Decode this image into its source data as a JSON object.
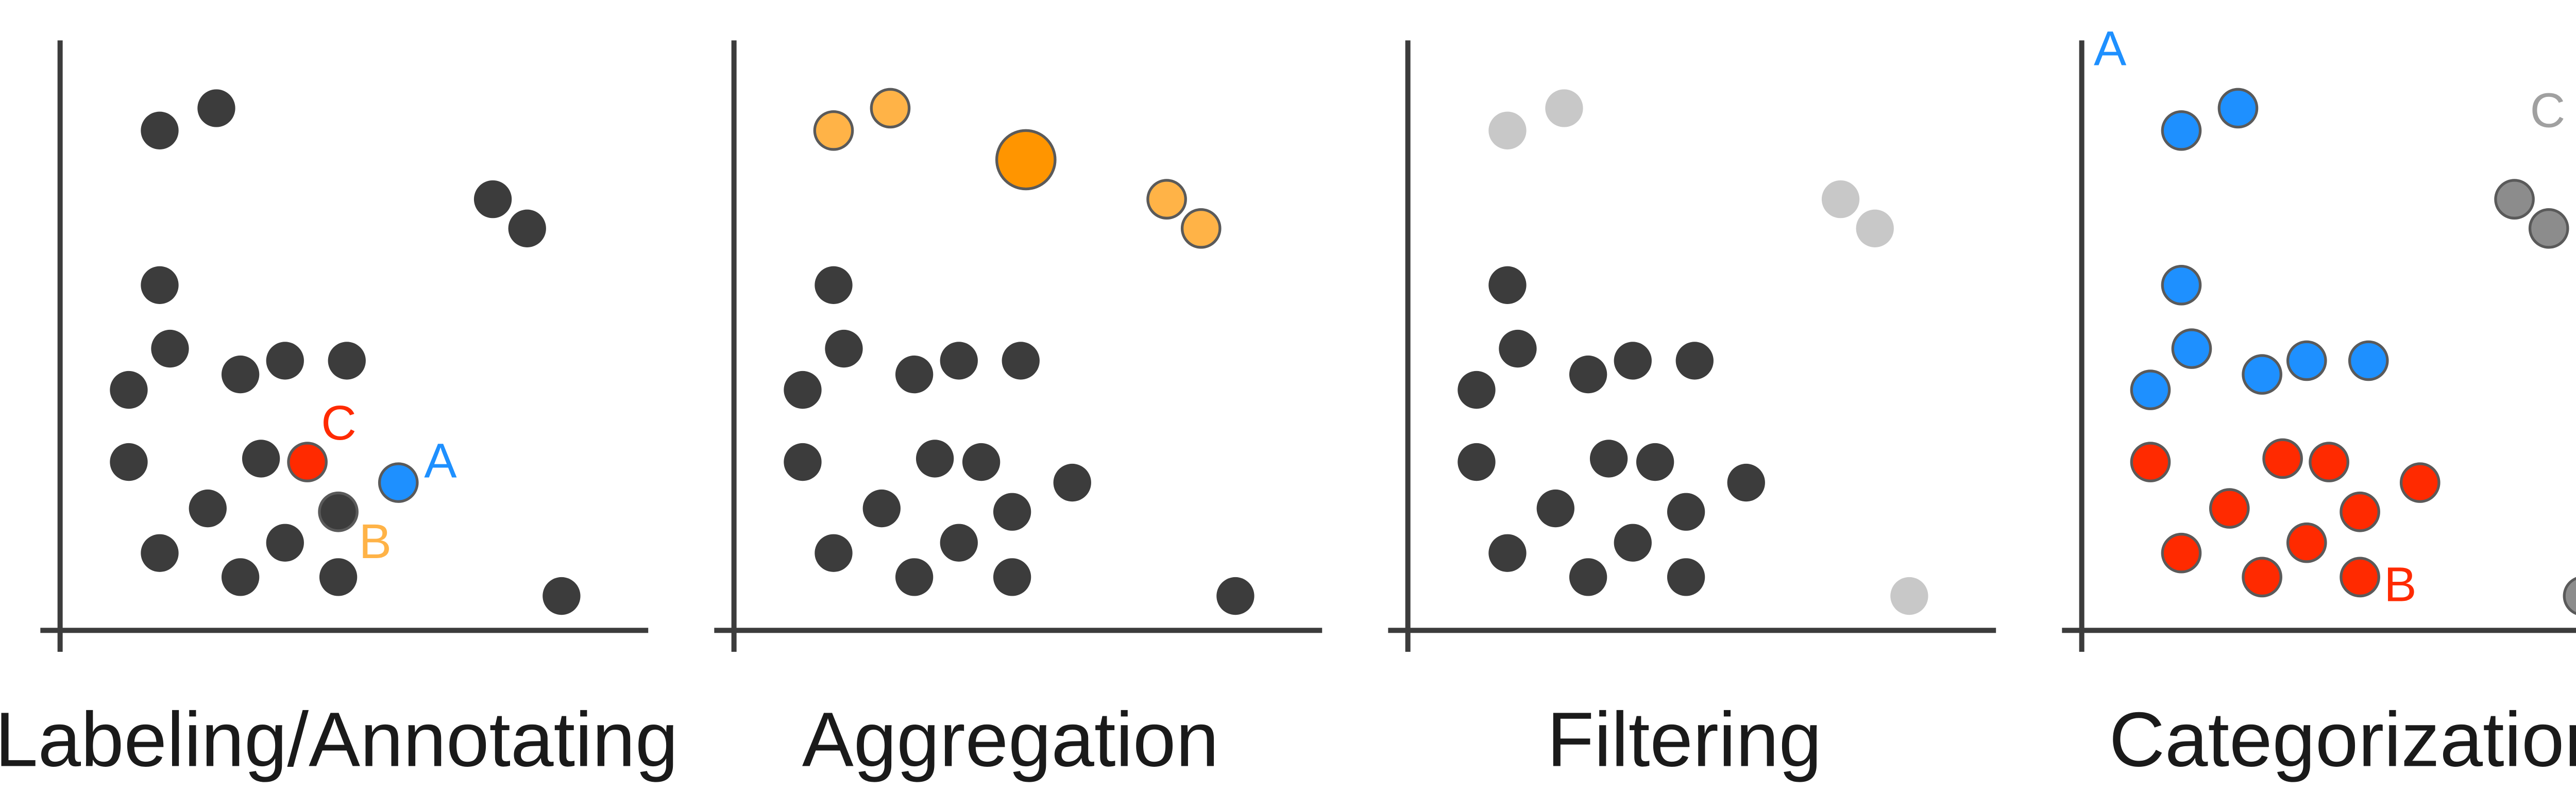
{
  "figure": {
    "panels": [
      {
        "title": "Labeling/Annotating",
        "labels": [
          {
            "text": "C",
            "color": "#ff2a00",
            "attach": 12,
            "pos": "above-right"
          },
          {
            "text": "A",
            "color": "#1e90ff",
            "attach": 13,
            "pos": "right"
          },
          {
            "text": "B",
            "color": "#ffb347",
            "attach": 16,
            "pos": "below-right"
          }
        ]
      },
      {
        "title": "Aggregation",
        "labels": []
      },
      {
        "title": "Filtering",
        "labels": []
      },
      {
        "title": "Categorization",
        "labels": [
          {
            "text": "A",
            "color": "#1e90ff",
            "corner": "top-left"
          },
          {
            "text": "C",
            "color": "#a0a0a0",
            "corner": "top-right"
          },
          {
            "text": "B",
            "color": "#ff2a00",
            "corner": "bottom-right"
          }
        ]
      }
    ],
    "point_styles": {
      "labeling": [
        "dark",
        "dark",
        "dark",
        "dark",
        "dark",
        "dark",
        "dark",
        "dark",
        "dark",
        "dark",
        "dark",
        "dark",
        "red",
        "blue",
        "dark",
        "dark",
        "orange",
        "dark",
        "dark",
        "dark",
        "dark",
        "dark",
        "dark"
      ],
      "aggregation": [
        "orange-light",
        "orange-light",
        "orange-big",
        "orange-light",
        "orange-light",
        "dark",
        "dark",
        "dark",
        "dark",
        "dark",
        "dark",
        "dark",
        "dark",
        "dark",
        "dark",
        "dark",
        "dark",
        "dark",
        "dark",
        "dark",
        "dark",
        "dark",
        "dark"
      ],
      "filtering": [
        "light",
        "light",
        "light",
        "light",
        "light",
        "dark",
        "dark",
        "dark",
        "dark",
        "dark",
        "dark",
        "dark",
        "dark",
        "dark",
        "dark",
        "dark",
        "dark",
        "dark",
        "dark",
        "dark",
        "dark",
        "dark",
        "light"
      ],
      "categorization": [
        "blue",
        "blue",
        "gray",
        "gray",
        "blue",
        "blue",
        "blue",
        "blue",
        "blue",
        "blue",
        "red",
        "red",
        "red",
        "red",
        "red",
        "red",
        "red",
        "red",
        "red",
        "red",
        "red",
        "red",
        "gray"
      ]
    },
    "colors": {
      "dark": "#3c3c3c",
      "light": "#c8c8c8",
      "orange-light": "#ffb347",
      "orange-big": "#ff9500",
      "blue": "#1e90ff",
      "red": "#ff2a00",
      "gray": "#8c8c8c",
      "outline": "#5a5a5a"
    }
  }
}
